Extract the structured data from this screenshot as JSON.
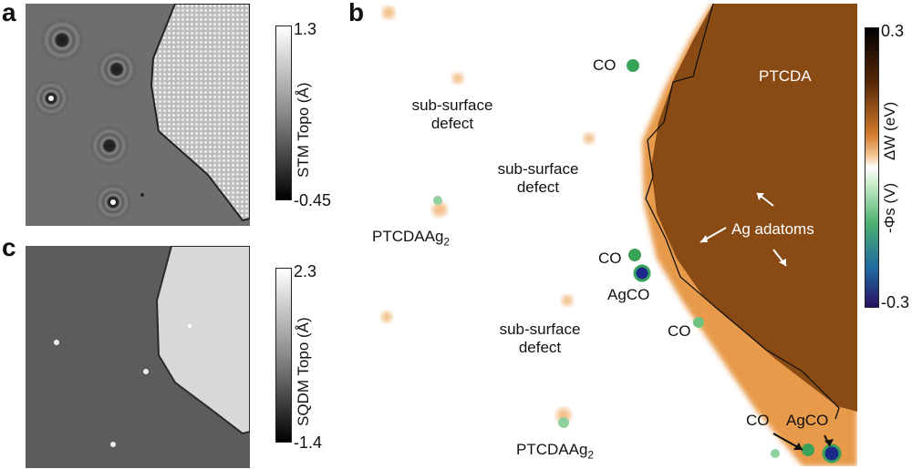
{
  "panels": {
    "a": {
      "letter": "a",
      "colorbar": {
        "max": "1.3",
        "min": "-0.45",
        "label": "STM Topo (Å)"
      }
    },
    "c": {
      "letter": "c",
      "colorbar": {
        "max": "2.3",
        "min": "-1.4",
        "label": "SQDM Topo (Å)"
      }
    },
    "b": {
      "letter": "b",
      "colorbar": {
        "max": "0.3",
        "min": "-0.3",
        "label_top": "ΔW (eV)",
        "label_bottom": "-Φs (V)"
      },
      "labels": {
        "co1": "CO",
        "co2": "CO",
        "co3": "CO",
        "co4": "CO",
        "ptcda": "PTCDA",
        "ag_adatoms": "Ag adatoms",
        "sub1_line1": "sub-surface",
        "sub1_line2": "defect",
        "sub2_line1": "sub-surface",
        "sub2_line2": "defect",
        "sub3_line1": "sub-surface",
        "sub3_line2": "defect",
        "ptcdaag2_1": "PTCDAAg",
        "ptcdaag2_1_sub": "2",
        "ptcdaag2_2": "PTCDAAg",
        "ptcdaag2_2_sub": "2",
        "agco1": "AgCO",
        "agco2": "AgCO"
      }
    }
  },
  "colors": {
    "ptcda_brown": "#8a4a14",
    "stm_bg": "#6e6e6e",
    "sqdm_bg": "#5c5c5c",
    "sqdm_island": "#d8d8d8",
    "co_green": "#3aa35a",
    "agco_blue": "#1b2a8a"
  }
}
